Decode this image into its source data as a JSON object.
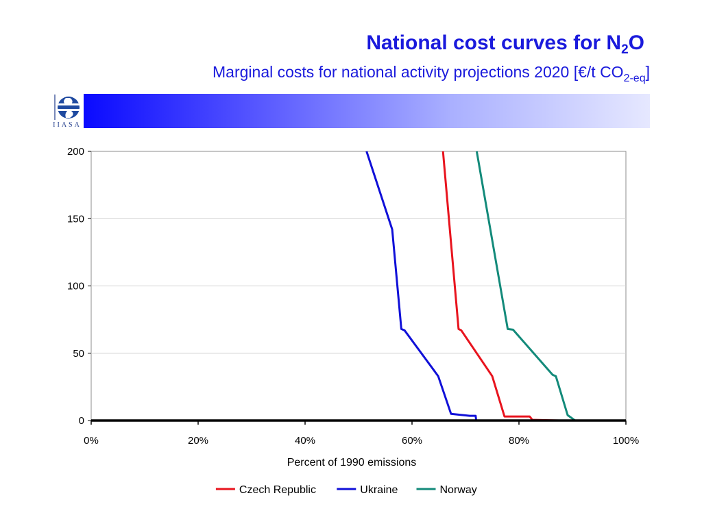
{
  "header": {
    "title_main": "National cost curves for N",
    "title_sub": "2",
    "title_end": "O",
    "subtitle_main": "Marginal costs for national activity projections 2020 [€/t CO",
    "subtitle_sub": "2-eq",
    "subtitle_end": "]",
    "logo_text": "IIASA"
  },
  "colors": {
    "title": "#1a1adc",
    "czech": "#e8141e",
    "ukraine": "#1010d8",
    "norway": "#138a7a"
  },
  "chart_data": {
    "type": "line",
    "title": "",
    "xlabel": "Percent of 1990 emissions",
    "ylabel": "",
    "xlim": [
      0,
      100
    ],
    "ylim": [
      0,
      200
    ],
    "x_unit": "%",
    "x_ticks": [
      "0%",
      "20%",
      "40%",
      "60%",
      "80%",
      "100%"
    ],
    "y_ticks": [
      "0",
      "50",
      "100",
      "150",
      "200"
    ],
    "grid": "horizontal",
    "legend": "bottom",
    "series": [
      {
        "name": "Czech Republic",
        "color": "#e8141e",
        "points": [
          [
            65.8,
            200
          ],
          [
            68.7,
            68
          ],
          [
            69.2,
            67
          ],
          [
            75.0,
            33
          ],
          [
            77.3,
            3
          ],
          [
            82.0,
            3
          ],
          [
            82.5,
            0.5
          ],
          [
            87.5,
            0
          ]
        ]
      },
      {
        "name": "Ukraine",
        "color": "#1010d8",
        "points": [
          [
            51.5,
            200
          ],
          [
            56.3,
            142
          ],
          [
            58.0,
            68
          ],
          [
            58.6,
            67
          ],
          [
            64.9,
            33
          ],
          [
            67.3,
            5
          ],
          [
            70.8,
            3.5
          ],
          [
            71.9,
            3.5
          ],
          [
            72.0,
            0
          ]
        ]
      },
      {
        "name": "Norway",
        "color": "#138a7a",
        "points": [
          [
            72.1,
            200
          ],
          [
            77.9,
            68
          ],
          [
            78.9,
            67.5
          ],
          [
            86.3,
            34
          ],
          [
            86.9,
            33
          ],
          [
            89.1,
            4
          ],
          [
            90.5,
            0
          ]
        ]
      },
      {
        "name": "",
        "color": "#000000",
        "points": [
          [
            0,
            0
          ],
          [
            100,
            0
          ]
        ]
      }
    ]
  }
}
